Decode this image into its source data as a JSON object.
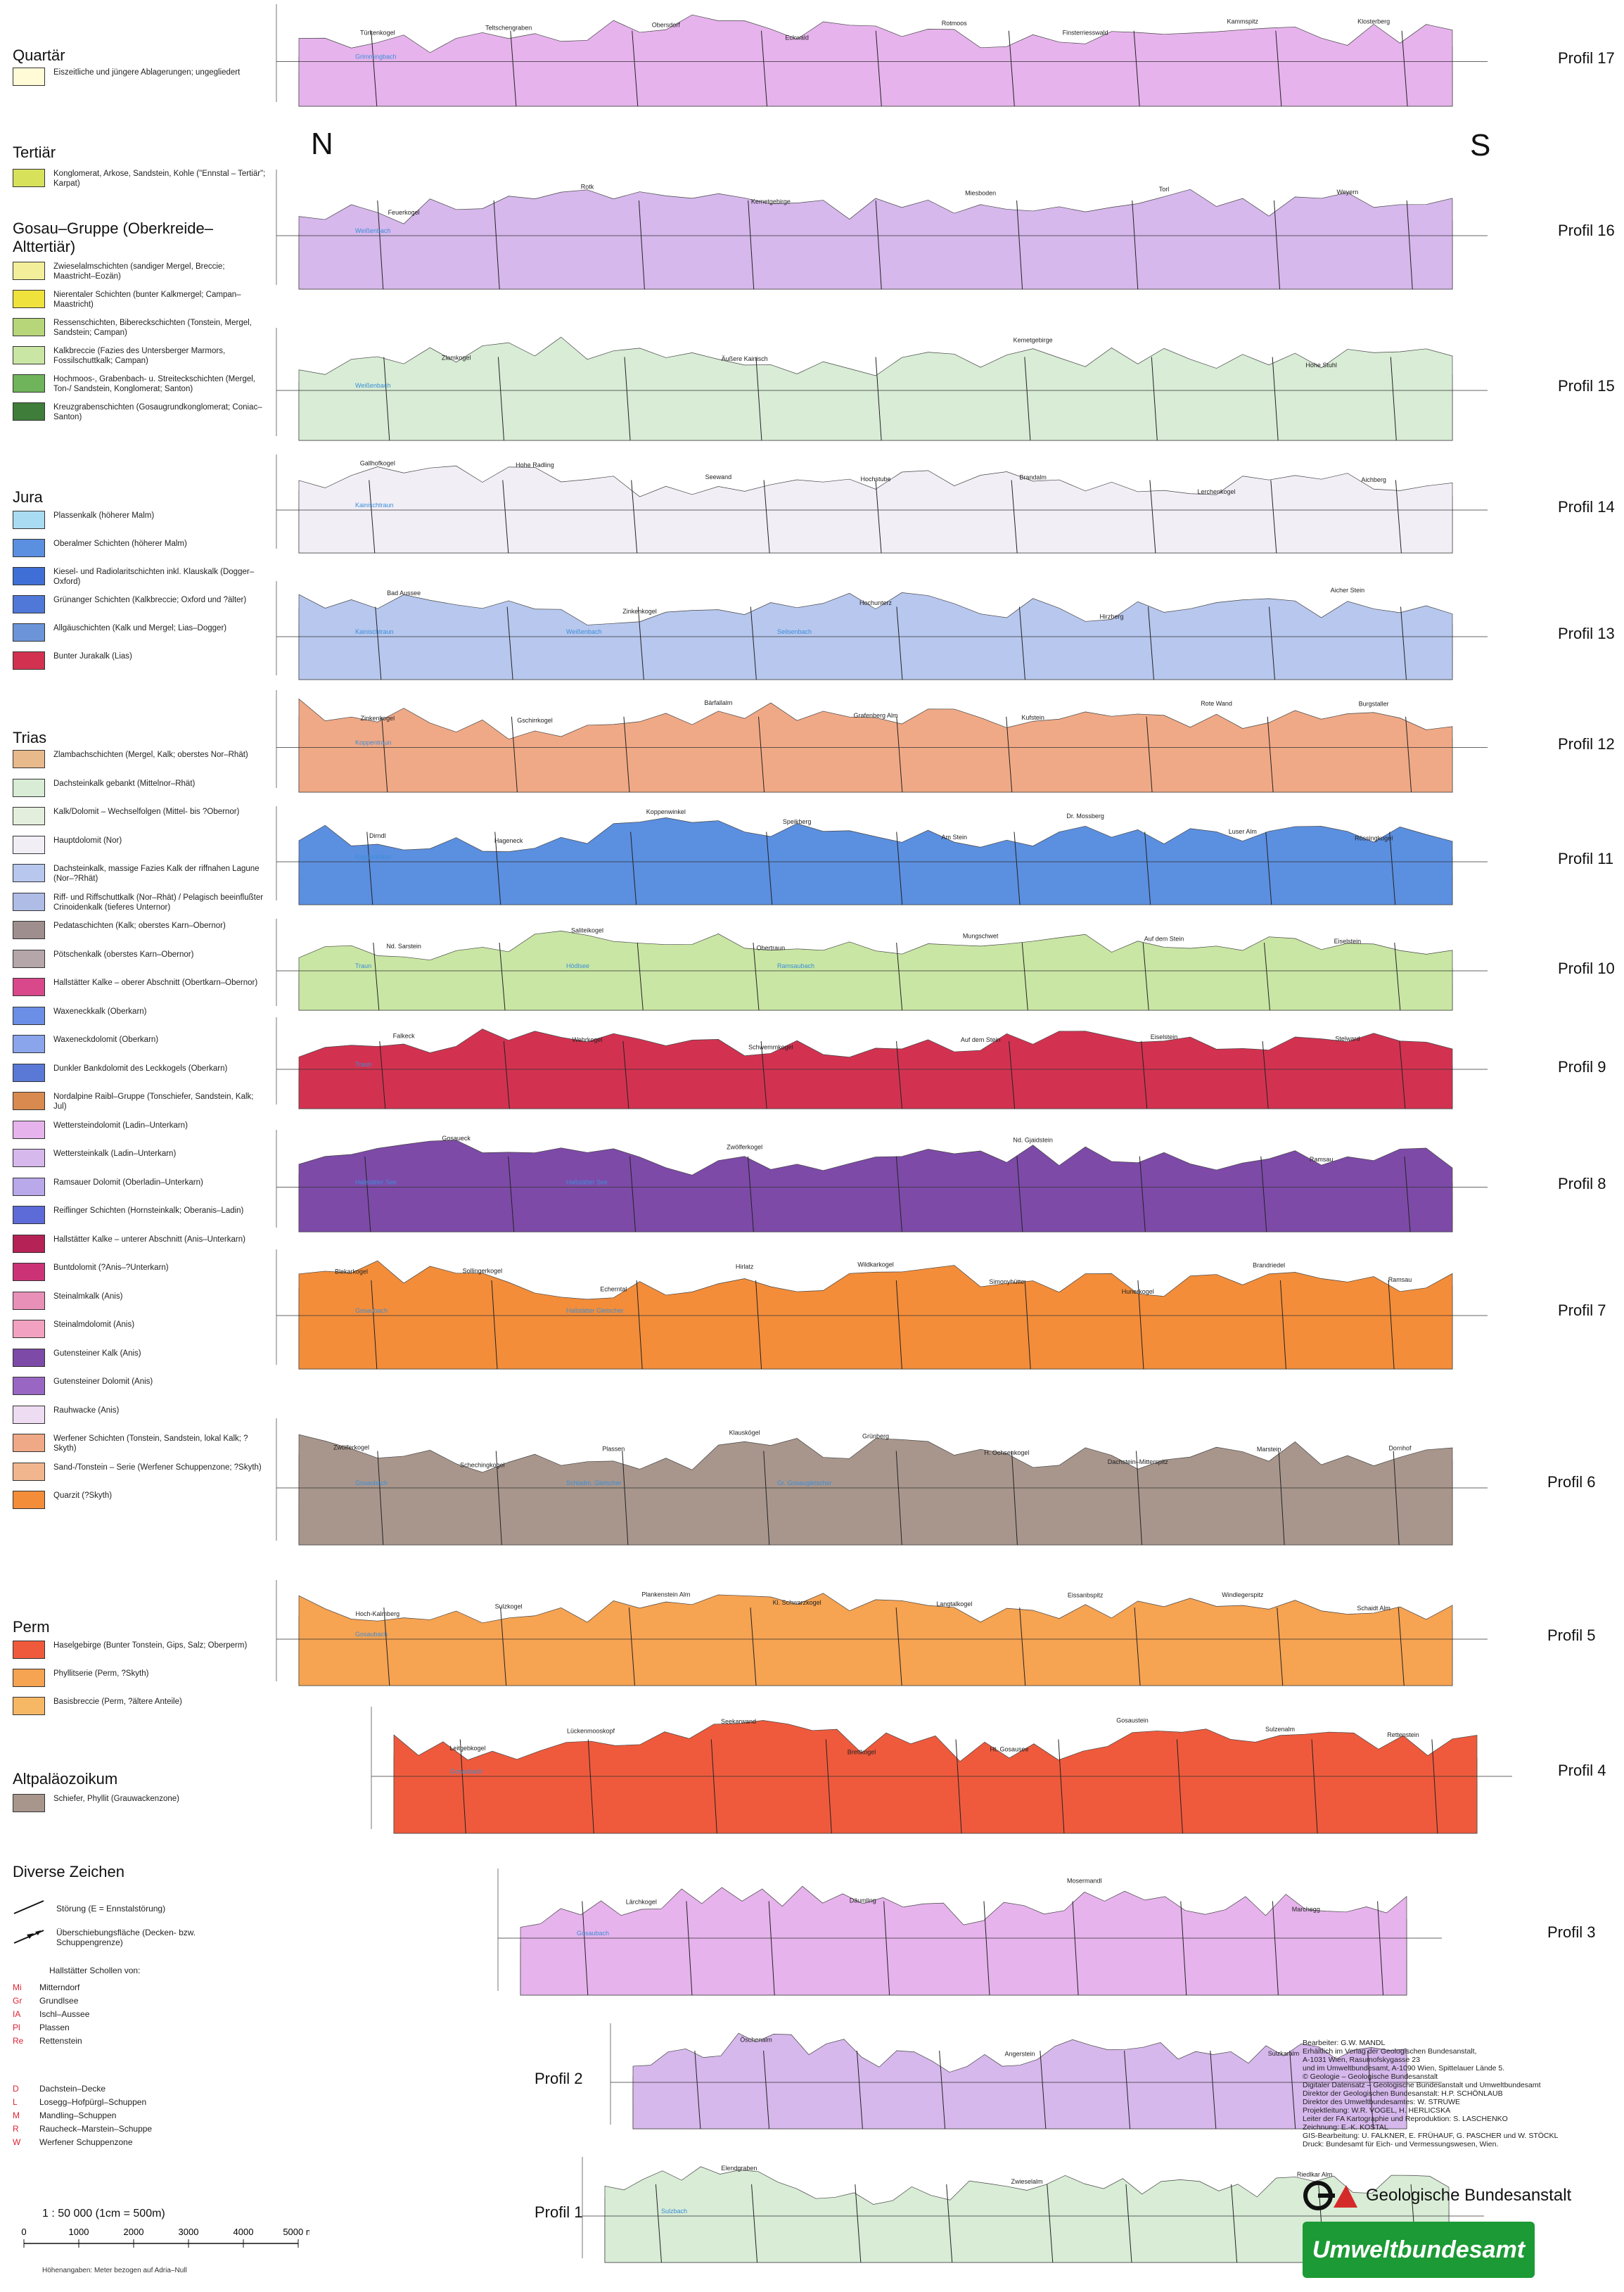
{
  "orientation": {
    "north": "N",
    "south": "S"
  },
  "legend": {
    "quartaer": {
      "title": "Quartär",
      "items": [
        {
          "label": "Eiszeitliche und jüngere Ablagerungen; ungegliedert",
          "color": "#fffbd6"
        }
      ]
    },
    "tertiaer": {
      "title": "Tertiär",
      "items": [
        {
          "label": "Konglomerat, Arkose, Sandstein, Kohle (\"Ennstal – Tertiär\"; Karpat)",
          "color": "#d7e15a"
        }
      ]
    },
    "gosau": {
      "title": "Gosau–Gruppe (Oberkreide–Alttertiär)",
      "items": [
        {
          "label": "Zwieselalmschichten (sandiger Mergel, Breccie; Maastricht–Eozän)",
          "color": "#f2ee9a"
        },
        {
          "label": "Nierentaler Schichten (bunter Kalkmergel; Campan–Maastricht)",
          "color": "#efe23c"
        },
        {
          "label": "Ressenschichten, Bibereckschichten (Tonstein, Mergel, Sandstein; Campan)",
          "color": "#b7d67a"
        },
        {
          "label": "Kalkbreccie (Fazies des Untersberger Marmors, Fossilschuttkalk; Campan)",
          "color": "#c9e6a4"
        },
        {
          "label": "Hochmoos-, Grabenbach- u. Streiteckschichten (Mergel, Ton-/ Sandstein, Konglomerat; Santon)",
          "color": "#6fb35a"
        },
        {
          "label": "Kreuzgrabenschichten (Gosaugrundkonglomerat; Coniac–Santon)",
          "color": "#3f7d3a"
        }
      ]
    },
    "jura": {
      "title": "Jura",
      "items": [
        {
          "label": "Plassenkalk (höherer Malm)",
          "color": "#a9dcf2"
        },
        {
          "label": "Oberalmer Schichten (höherer Malm)",
          "color": "#5b8fe0"
        },
        {
          "label": "Kiesel- und Radiolaritschichten inkl. Klauskalk (Dogger–Oxford)",
          "color": "#3f6fd6"
        },
        {
          "label": "Grünanger Schichten (Kalkbreccie; Oxford und ?älter)",
          "color": "#4f78d8"
        },
        {
          "label": "Allgäuschichten (Kalk und Mergel; Lias–Dogger)",
          "color": "#6b95d8"
        },
        {
          "label": "Bunter Jurakalk (Lias)",
          "color": "#d23250"
        }
      ]
    },
    "trias": {
      "title": "Trias",
      "items": [
        {
          "label": "Zlambachschichten (Mergel, Kalk; oberstes Nor–Rhät)",
          "color": "#e8b98a"
        },
        {
          "label": "Dachsteinkalk gebankt (Mittelnor–Rhät)",
          "color": "#d8ecd6"
        },
        {
          "label": "Kalk/Dolomit – Wechselfolgen (Mittel- bis ?Obernor)",
          "color": "#e4eedc"
        },
        {
          "label": "Hauptdolomit (Nor)",
          "color": "#f2eef6"
        },
        {
          "label": "Dachsteinkalk, massige Fazies Kalk der riffnahen Lagune (Nor–?Rhät)",
          "color": "#b7c7ee"
        },
        {
          "label": "Riff- und Riffschuttkalk (Nor–Rhät) / Pelagisch beeinflußter Crinoidenkalk (tieferes Unternor)",
          "color": "#aebce6"
        },
        {
          "label": "Pedataschichten (Kalk; oberstes Karn–Obernor)",
          "color": "#9e8e8e"
        },
        {
          "label": "Pötschenkalk (oberstes Karn–Obernor)",
          "color": "#b5a6a9"
        },
        {
          "label": "Hallstätter Kalke – oberer Abschnitt (Obertkarn–Obernor)",
          "color": "#d8488a"
        },
        {
          "label": "Waxeneckkalk (Oberkarn)",
          "color": "#6b8fe6"
        },
        {
          "label": "Waxeneckdolomit (Oberkarn)",
          "color": "#8aa5ec"
        },
        {
          "label": "Dunkler Bankdolomit des Leckkogels (Oberkarn)",
          "color": "#5a79d6"
        },
        {
          "label": "Nordalpine Raibl–Gruppe (Tonschiefer, Sandstein, Kalk; Jul)",
          "color": "#d98a4f"
        },
        {
          "label": "Wettersteindolomit (Ladin–Unterkarn)",
          "color": "#e6b3ec"
        },
        {
          "label": "Wettersteinkalk (Ladin–Unterkarn)",
          "color": "#d6b8ec"
        },
        {
          "label": "Ramsauer Dolomit (Oberladin–Unterkarn)",
          "color": "#b9a8ea"
        },
        {
          "label": "Reiflinger Schichten (Hornsteinkalk; Oberanis–Ladin)",
          "color": "#5c6bd8"
        },
        {
          "label": "Hallstätter Kalke – unterer Abschnitt (Anis–Unterkarn)",
          "color": "#b52255"
        },
        {
          "label": "Buntdolomit (?Anis–?Unterkarn)",
          "color": "#cc3377"
        },
        {
          "label": "Steinalmkalk (Anis)",
          "color": "#e890b8"
        },
        {
          "label": "Steinalmdolomit (Anis)",
          "color": "#f2a2c0"
        },
        {
          "label": "Gutensteiner Kalk (Anis)",
          "color": "#7d4aa8"
        },
        {
          "label": "Gutensteiner Dolomit (Anis)",
          "color": "#9a66c4"
        },
        {
          "label": "Rauhwacke (Anis)",
          "color": "#eedcf2"
        },
        {
          "label": "Werfener Schichten (Tonstein, Sandstein, lokal Kalk; ?Skyth)",
          "color": "#f0a986"
        },
        {
          "label": "Sand-/Tonstein – Serie (Werfener Schuppenzone; ?Skyth)",
          "color": "#f2b68e"
        },
        {
          "label": "Quarzit (?Skyth)",
          "color": "#f38d3a"
        }
      ]
    },
    "perm": {
      "title": "Perm",
      "items": [
        {
          "label": "Haselgebirge (Bunter Tonstein, Gips, Salz; Oberperm)",
          "color": "#ef5a3c"
        },
        {
          "label": "Phyllitserie (Perm, ?Skyth)",
          "color": "#f6a352"
        },
        {
          "label": "Basisbreccie (Perm, ?ältere Anteile)",
          "color": "#f7b866"
        }
      ]
    },
    "altpalaeozoikum": {
      "title": "Altpaläozoikum",
      "items": [
        {
          "label": "Schiefer, Phyllit (Grauwackenzone)",
          "color": "#a8968c"
        }
      ]
    }
  },
  "signs": {
    "title": "Diverse Zeichen",
    "fault": "Störung (E = Ennstalstörung)",
    "thrust": "Überschiebungsfläche (Decken- bzw. Schuppengrenze)",
    "hallstatt_title": "Hallstätter Schollen von:",
    "hallstatt": [
      {
        "code": "Mi",
        "name": "Mitterndorf"
      },
      {
        "code": "Gr",
        "name": "Grundlsee"
      },
      {
        "code": "IA",
        "name": "Ischl–Aussee"
      },
      {
        "code": "Pl",
        "name": "Plassen"
      },
      {
        "code": "Re",
        "name": "Rettenstein"
      }
    ],
    "units": [
      {
        "code": "D",
        "name": "Dachstein–Decke"
      },
      {
        "code": "L",
        "name": "Losegg–Hofpürgl–Schuppen"
      },
      {
        "code": "M",
        "name": "Mandling–Schuppen"
      },
      {
        "code": "R",
        "name": "Raucheck–Marstein–Schuppe"
      },
      {
        "code": "W",
        "name": "Werfener Schuppenzone"
      }
    ]
  },
  "scale": {
    "title": "1 : 50 000 (1cm = 500m)",
    "ticks": [
      "0",
      "1000",
      "2000",
      "3000",
      "4000",
      "5000 m"
    ],
    "note": "Höhenangaben: Meter bezogen auf Adria–Null"
  },
  "profiles": [
    {
      "name": "Profil 17",
      "places": [
        "Türkenkogel",
        "Teltschengraben",
        "Obersdorf",
        "Eckwald",
        "Rotmoos",
        "Finsterriesswald",
        "Kammspitz",
        "Klosterberg"
      ],
      "waters": [
        "Grimmingbach"
      ]
    },
    {
      "name": "Profil 16",
      "places": [
        "Feuerkogel",
        "Rotk",
        "Kemetgebirge",
        "Miesboden",
        "Torl",
        "Weyern"
      ],
      "waters": [
        "Weißenbach"
      ]
    },
    {
      "name": "Profil 15",
      "places": [
        "Zlamkogel",
        "Äußere Kainisch",
        "Kemetgebirge",
        "Hohe Stuhl"
      ],
      "waters": [
        "Weißenbach"
      ]
    },
    {
      "name": "Profil 14",
      "places": [
        "Gallhofkogel",
        "Hohe Radling",
        "Seewand",
        "Hochstube",
        "Brandalm",
        "Lerchenkogel",
        "Aichberg"
      ],
      "waters": [
        "Kainischtraun"
      ]
    },
    {
      "name": "Profil 13",
      "places": [
        "Bad Aussee",
        "Zinkenkogel",
        "Hochunterz",
        "Hirzberg",
        "Aicher Stein"
      ],
      "waters": [
        "Kainischtraun",
        "Weißenbach",
        "Seilsenbach"
      ]
    },
    {
      "name": "Profil 12",
      "places": [
        "Zinkenkogel",
        "Gschirrkogel",
        "Bärfallalm",
        "Grafenberg Alm",
        "Kufstein",
        "Rote Wand",
        "Burgstaller"
      ],
      "waters": [
        "Koppentraun"
      ]
    },
    {
      "name": "Profil 11",
      "places": [
        "Dirndl",
        "Hageneck",
        "Koppenwinkel",
        "Speikberg",
        "Am Stein",
        "Dr. Mossberg",
        "Luser Alm",
        "Rössingkogel"
      ],
      "waters": [
        "Koppentraun"
      ]
    },
    {
      "name": "Profil 10",
      "places": [
        "Nd. Sarstein",
        "Saliteikogel",
        "Obertraun",
        "Mungschwet",
        "Auf dem Stein",
        "Eiselstein"
      ],
      "waters": [
        "Traun",
        "Hödlsee",
        "Ramsaubach"
      ]
    },
    {
      "name": "Profil 9",
      "places": [
        "Falkeck",
        "Wehrkogel",
        "Schwemmkogel",
        "Auf dem Stein",
        "Eiselstein",
        "Stelward"
      ],
      "waters": [
        "Traun"
      ]
    },
    {
      "name": "Profil 8",
      "places": [
        "Gosaueck",
        "Zwölferkogel",
        "Nd. Gjaidstein",
        "Ramsau"
      ],
      "waters": [
        "Hallstätter See",
        "Hallstätter See"
      ]
    },
    {
      "name": "Profil 7",
      "places": [
        "Blekarkogel",
        "Sollingerkogel",
        "Echerntal",
        "Hirlatz",
        "Wildkarkogel",
        "Simonyhütte",
        "Hunerkogel",
        "Brandriedel",
        "Ramsau"
      ],
      "waters": [
        "Gosaubach",
        "Hallstätter Gletscher"
      ]
    },
    {
      "name": "Profil 6",
      "places": [
        "Zwölferkogel",
        "Schechingkogel",
        "Plassen",
        "Klauskögel",
        "Grünberg",
        "H. Ochsenkogel",
        "Dachstein–Mitterspitz",
        "Marstein",
        "Dornhof"
      ],
      "waters": [
        "Gosaubach",
        "Schladm. Gletscher",
        "Gr. Gosaugletscher"
      ]
    },
    {
      "name": "Profil 5",
      "places": [
        "Hoch-Kalmberg",
        "Sulzkogel",
        "Plankenstein Alm",
        "Kl. Schwarzkogel",
        "Langtalkogel",
        "Eissanbspitz",
        "Windlegerspitz",
        "Schaidt Alm"
      ],
      "waters": [
        "Gosaubach"
      ]
    },
    {
      "name": "Profil 4",
      "places": [
        "Leitgebkogel",
        "Lückenmooskopf",
        "Seekarwand",
        "Brettkogel",
        "Ht. Gosausee",
        "Gosaustein",
        "Sulzenalm",
        "Rettenstein"
      ],
      "waters": [
        "Gosaubach"
      ]
    },
    {
      "name": "Profil 3",
      "places": [
        "Lärchkogel",
        "Däumling",
        "Mosermandl",
        "Marchegg"
      ],
      "waters": [
        "Gosaubach"
      ]
    },
    {
      "name": "Profil 2",
      "places": [
        "Öschenalm",
        "Angerstein",
        "Sulzkaralm"
      ],
      "waters": []
    },
    {
      "name": "Profil 1",
      "places": [
        "Elendgraben",
        "Zwieselalm",
        "Riedlkar Alm"
      ],
      "waters": [
        "Sulzbach"
      ]
    }
  ],
  "credits": [
    "Bearbeiter: G.W. MANDL",
    "Erhältlich im Verlag der Geologischen Bundesanstalt,",
    "A-1031 Wien, Rasumofskygasse 23",
    "und im Umweltbundesamt, A-1090 Wien, Spittelauer Lände 5.",
    "© Geologie – Geologische Bundesanstalt",
    "Digitaler Datensatz – Geologische Bundesanstalt und Umweltbundesamt",
    "Direktor der Geologischen Bundesanstalt: H.P. SCHÖNLAUB",
    "Direktor des Umweltbundesamtes: W. STRUWE",
    "Projektleitung: W.R. VOGEL, H. HERLICSKA",
    "Leiter der FA Kartographie und Reproduktion: S. LASCHENKO",
    "Zeichnung: E.-K. KOSTAL",
    "GIS-Bearbeitung: U. FALKNER, E. FRÜHAUF, G. PASCHER und W. STÖCKL",
    "Druck: Bundesamt für Eich- und Vermessungswesen, Wien."
  ],
  "logos": {
    "gba": "Geologische Bundesanstalt",
    "uba": "Umweltbundesamt"
  }
}
